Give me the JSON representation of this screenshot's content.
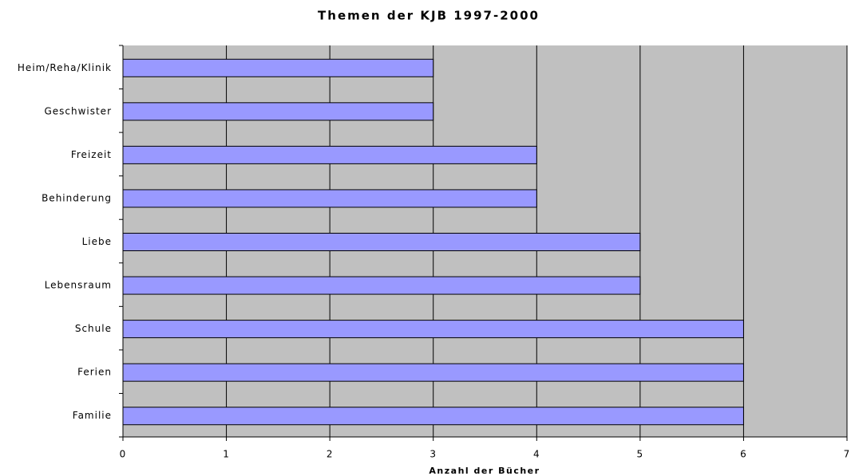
{
  "chart_data": {
    "type": "bar",
    "orientation": "horizontal",
    "title": "Themen der KJB 1997-2000",
    "x_label": "Anzahl der Bücher",
    "categories": [
      "Heim/Reha/Klinik",
      "Geschwister",
      "Freizeit",
      "Behinderung",
      "Liebe",
      "Lebensraum",
      "Schule",
      "Ferien",
      "Familie"
    ],
    "values": [
      3,
      3,
      4,
      4,
      5,
      5,
      6,
      6,
      6
    ],
    "color": "#9999ff",
    "plot_background": "#c0c0c0",
    "xlim": [
      0,
      7
    ],
    "xticks": [
      0,
      1,
      2,
      3,
      4,
      5,
      6,
      7
    ],
    "grid": true
  }
}
